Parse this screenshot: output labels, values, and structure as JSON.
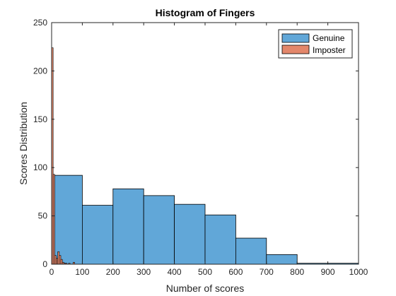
{
  "chart_data": {
    "type": "bar",
    "title": "Histogram of Fingers",
    "xlabel": "Number of scores",
    "ylabel": "Scores Distribution",
    "xlim": [
      0,
      1000
    ],
    "ylim": [
      0,
      250
    ],
    "xticks": [
      0,
      100,
      200,
      300,
      400,
      500,
      600,
      700,
      800,
      900,
      1000
    ],
    "yticks": [
      0,
      50,
      100,
      150,
      200,
      250
    ],
    "grid": false,
    "legend_position": "top-right",
    "series": [
      {
        "name": "Genuine",
        "color": "#61a7d8",
        "bin_width": 100,
        "bin_edges": [
          0,
          100,
          200,
          300,
          400,
          500,
          600,
          700,
          800,
          900,
          1000
        ],
        "values": [
          92,
          61,
          78,
          71,
          62,
          51,
          27,
          10,
          1,
          1
        ]
      },
      {
        "name": "Imposter",
        "color": "#e3876b",
        "bin_width": 5,
        "bin_edges": [
          0,
          5,
          10,
          15,
          20,
          25,
          30,
          35,
          40,
          45,
          50,
          55,
          60,
          65,
          70,
          75
        ],
        "values": [
          224,
          93,
          9,
          6,
          13,
          9,
          5,
          2,
          1,
          1,
          0,
          1,
          0,
          0,
          2
        ]
      }
    ]
  }
}
